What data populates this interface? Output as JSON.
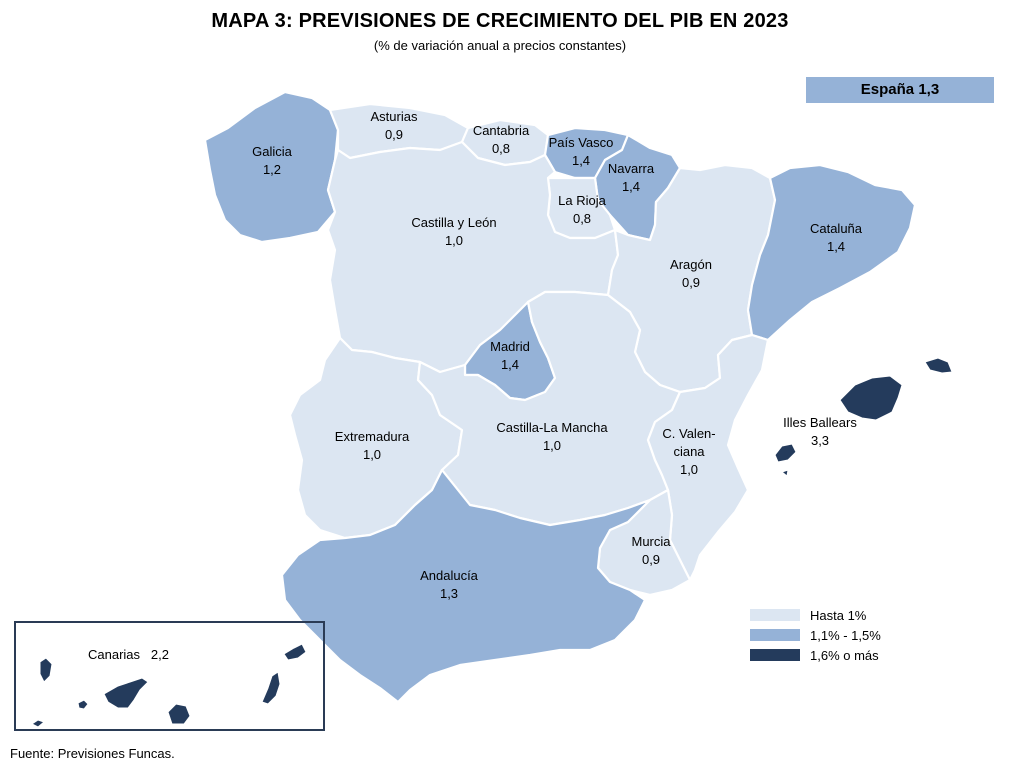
{
  "title": "MAPA 3: PREVISIONES DE CRECIMIENTO DEL PIB EN 2023",
  "subtitle": "(% de variación anual a precios constantes)",
  "spain_total": "España 1,3",
  "colors": {
    "low": "#dce6f2",
    "mid": "#95b2d7",
    "high": "#243b5c",
    "border": "#ffffff"
  },
  "regions": [
    {
      "name": "Galicia",
      "value": "1,2",
      "category": "mid"
    },
    {
      "name": "Asturias",
      "value": "0,9",
      "category": "low"
    },
    {
      "name": "Cantabria",
      "value": "0,8",
      "category": "low"
    },
    {
      "name": "País Vasco",
      "value": "1,4",
      "category": "mid"
    },
    {
      "name": "Navarra",
      "value": "1,4",
      "category": "mid"
    },
    {
      "name": "La Rioja",
      "value": "0,8",
      "category": "low"
    },
    {
      "name": "Castilla y León",
      "value": "1,0",
      "category": "low"
    },
    {
      "name": "Aragón",
      "value": "0,9",
      "category": "low"
    },
    {
      "name": "Cataluña",
      "value": "1,4",
      "category": "mid"
    },
    {
      "name": "Madrid",
      "value": "1,4",
      "category": "mid"
    },
    {
      "name": "Extremadura",
      "value": "1,0",
      "category": "low"
    },
    {
      "name": "Castilla-La Mancha",
      "value": "1,0",
      "category": "low"
    },
    {
      "name": "C. Valenciana",
      "value": "1,0",
      "category": "low"
    },
    {
      "name": "Illes Ballears",
      "value": "3,3",
      "category": "high"
    },
    {
      "name": "Murcia",
      "value": "0,9",
      "category": "low"
    },
    {
      "name": "Andalucía",
      "value": "1,3",
      "category": "mid"
    },
    {
      "name": "Canarias",
      "value": "2,2",
      "category": "high"
    }
  ],
  "labels": {
    "galicia": {
      "name": "Galicia",
      "value": "1,2"
    },
    "asturias": {
      "name": "Asturias",
      "value": "0,9"
    },
    "cantabria": {
      "name": "Cantabria",
      "value": "0,8"
    },
    "pais_vasco": {
      "name": "País Vasco",
      "value": "1,4"
    },
    "navarra": {
      "name": "Navarra",
      "value": "1,4"
    },
    "la_rioja": {
      "name": "La Rioja",
      "value": "0,8"
    },
    "castilla_leon": {
      "name": "Castilla y León",
      "value": "1,0"
    },
    "aragon": {
      "name": "Aragón",
      "value": "0,9"
    },
    "cataluna": {
      "name": "Cataluña",
      "value": "1,4"
    },
    "madrid": {
      "name": "Madrid",
      "value": "1,4"
    },
    "extremadura": {
      "name": "Extremadura",
      "value": "1,0"
    },
    "castilla_la_mancha": {
      "name": "Castilla-La Mancha",
      "value": "1,0"
    },
    "valenciana": {
      "name_line1": "C. Valen-",
      "name_line2": "ciana",
      "value": "1,0"
    },
    "baleares": {
      "name": "Illes Ballears",
      "value": "3,3"
    },
    "murcia": {
      "name": "Murcia",
      "value": "0,9"
    },
    "andalucia": {
      "name": "Andalucía",
      "value": "1,3"
    },
    "canarias": {
      "text": "Canarias   2,2"
    }
  },
  "legend": [
    {
      "label": "Hasta 1%",
      "category": "low"
    },
    {
      "label": "1,1% - 1,5%",
      "category": "mid"
    },
    {
      "label": "1,6% o más",
      "category": "high"
    }
  ],
  "source": "Fuente: Previsiones Funcas."
}
